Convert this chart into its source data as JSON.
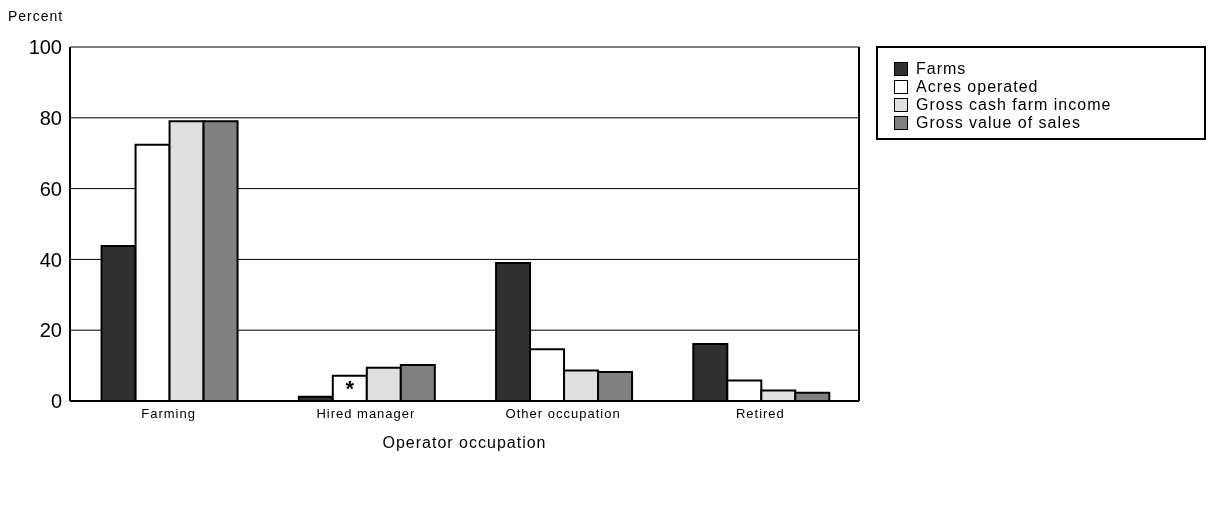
{
  "chart_data": {
    "type": "bar",
    "ylabel": "Percent",
    "xlabel": "Operator occupation",
    "categories": [
      "Farming",
      "Hired manager",
      "Other occupation",
      "Retired"
    ],
    "series": [
      {
        "name": "Farms",
        "color": "#303030",
        "values": [
          43.8,
          1.2,
          39.0,
          16.1
        ]
      },
      {
        "name": "Acres operated",
        "color": "#ffffff",
        "values": [
          72.4,
          7.1,
          14.6,
          5.8
        ]
      },
      {
        "name": "Gross cash farm income",
        "color": "#e0e0e0",
        "values": [
          79.0,
          9.4,
          8.6,
          3.0
        ]
      },
      {
        "name": "Gross value of sales",
        "color": "#808080",
        "values": [
          79.0,
          10.2,
          8.2,
          2.3
        ]
      }
    ],
    "ylim": [
      0,
      100
    ],
    "yticks": [
      0,
      20,
      40,
      60,
      80,
      100
    ],
    "grid": "y",
    "legend": "top right",
    "annotations": [
      {
        "text": "*",
        "x": "Hired manager",
        "y": 7.1
      }
    ]
  }
}
